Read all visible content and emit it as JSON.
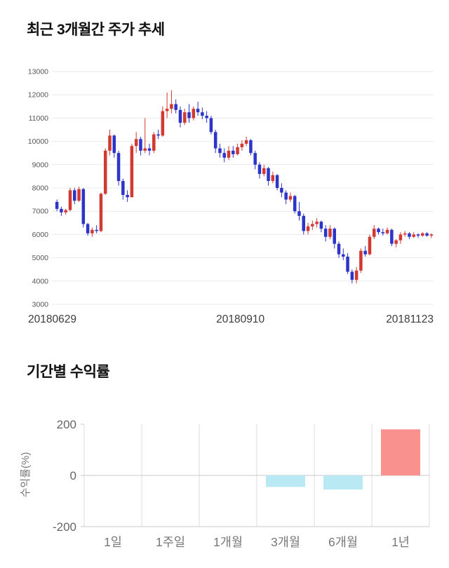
{
  "page": {
    "background": "#ffffff"
  },
  "chart_data": [
    {
      "type": "candlestick",
      "title": "최근 3개월간 주가 추세",
      "x_labels": [
        "20180629",
        "20180910",
        "20181123"
      ],
      "yticks": [
        13000,
        12000,
        11000,
        10000,
        9000,
        8000,
        7000,
        6000,
        5000,
        4000,
        3000
      ],
      "ylim": [
        3000,
        13000
      ],
      "grid": true,
      "up_color": "#d03a32",
      "down_color": "#2d35c8",
      "grid_color": "#e9e9e9",
      "tick_color": "#555555",
      "xlabel_color": "#3c3c3c",
      "ohlc": [
        [
          7400,
          7500,
          7000,
          7100
        ],
        [
          7100,
          7200,
          6800,
          6950
        ],
        [
          6950,
          7100,
          6850,
          7050
        ],
        [
          7050,
          8000,
          7000,
          7900
        ],
        [
          7900,
          8000,
          7300,
          7450
        ],
        [
          7450,
          8050,
          7400,
          7950
        ],
        [
          7950,
          8000,
          6300,
          6450
        ],
        [
          6450,
          6500,
          5950,
          6050
        ],
        [
          6050,
          6300,
          5900,
          6200
        ],
        [
          6200,
          6400,
          6050,
          6150
        ],
        [
          6150,
          7800,
          6100,
          7750
        ],
        [
          7750,
          9700,
          7700,
          9600
        ],
        [
          9600,
          10500,
          9400,
          10250
        ],
        [
          10250,
          10300,
          9300,
          9500
        ],
        [
          9500,
          9600,
          8100,
          8300
        ],
        [
          8300,
          8400,
          7500,
          7700
        ],
        [
          7700,
          7900,
          7400,
          7600
        ],
        [
          7600,
          9900,
          7600,
          9800
        ],
        [
          9800,
          10400,
          9500,
          10100
        ],
        [
          10100,
          10200,
          9400,
          9600
        ],
        [
          9600,
          11000,
          9500,
          9700
        ],
        [
          9700,
          9900,
          9400,
          9600
        ],
        [
          9600,
          10400,
          9500,
          10300
        ],
        [
          10300,
          10500,
          10100,
          10250
        ],
        [
          10250,
          11500,
          10200,
          11300
        ],
        [
          11300,
          12100,
          11000,
          11400
        ],
        [
          11400,
          12200,
          11200,
          11600
        ],
        [
          11600,
          11800,
          11200,
          11350
        ],
        [
          11350,
          11500,
          10600,
          10800
        ],
        [
          10800,
          11400,
          10700,
          11250
        ],
        [
          11250,
          11600,
          10800,
          11000
        ],
        [
          11000,
          11500,
          10900,
          11400
        ],
        [
          11400,
          11700,
          11100,
          11250
        ],
        [
          11250,
          11450,
          10950,
          11100
        ],
        [
          11100,
          11300,
          10800,
          11000
        ],
        [
          11000,
          11100,
          10300,
          10400
        ],
        [
          10400,
          10500,
          9500,
          9700
        ],
        [
          9700,
          9900,
          9300,
          9500
        ],
        [
          9500,
          9700,
          9100,
          9300
        ],
        [
          9300,
          9800,
          9200,
          9600
        ],
        [
          9600,
          9800,
          9300,
          9450
        ],
        [
          9450,
          9900,
          9400,
          9750
        ],
        [
          9750,
          10050,
          9600,
          9900
        ],
        [
          9900,
          10200,
          9800,
          10050
        ],
        [
          10050,
          10100,
          9400,
          9500
        ],
        [
          9500,
          9600,
          8800,
          9000
        ],
        [
          9000,
          9100,
          8400,
          8600
        ],
        [
          8600,
          9000,
          8500,
          8850
        ],
        [
          8850,
          8900,
          8100,
          8300
        ],
        [
          8300,
          8700,
          8200,
          8550
        ],
        [
          8550,
          8600,
          7900,
          8000
        ],
        [
          8000,
          8200,
          7600,
          7800
        ],
        [
          7800,
          7900,
          7300,
          7500
        ],
        [
          7500,
          7800,
          7400,
          7650
        ],
        [
          7650,
          7700,
          6900,
          7000
        ],
        [
          7000,
          7400,
          6600,
          6800
        ],
        [
          6800,
          6900,
          6000,
          6150
        ],
        [
          6150,
          6500,
          6000,
          6350
        ],
        [
          6350,
          6600,
          6200,
          6450
        ],
        [
          6450,
          6700,
          6300,
          6550
        ],
        [
          6550,
          6600,
          6100,
          6250
        ],
        [
          6250,
          6400,
          5700,
          5900
        ],
        [
          5900,
          6400,
          5800,
          6250
        ],
        [
          6250,
          6300,
          5400,
          5600
        ],
        [
          5600,
          5700,
          5000,
          5150
        ],
        [
          5150,
          5400,
          4900,
          5050
        ],
        [
          5050,
          5200,
          4300,
          4400
        ],
        [
          4400,
          4500,
          3900,
          4050
        ],
        [
          4050,
          4600,
          3900,
          4450
        ],
        [
          4450,
          5400,
          4350,
          5300
        ],
        [
          5300,
          5500,
          5050,
          5150
        ],
        [
          5150,
          6000,
          5100,
          5900
        ],
        [
          5900,
          6400,
          5800,
          6250
        ],
        [
          6250,
          6300,
          6000,
          6100
        ],
        [
          6100,
          6250,
          5950,
          6050
        ],
        [
          6050,
          6300,
          6000,
          6200
        ],
        [
          6200,
          6250,
          5500,
          5600
        ],
        [
          5600,
          5800,
          5450,
          5750
        ],
        [
          5750,
          6100,
          5600,
          6000
        ],
        [
          6000,
          6150,
          5900,
          6050
        ],
        [
          6050,
          6100,
          5800,
          5900
        ],
        [
          5900,
          6100,
          5850,
          6000
        ],
        [
          6000,
          6050,
          5850,
          5950
        ],
        [
          5950,
          6100,
          5900,
          6050
        ],
        [
          6050,
          6100,
          5900,
          5950
        ],
        [
          5950,
          6050,
          5850,
          6000
        ]
      ]
    },
    {
      "type": "bar",
      "title": "기간별 수익률",
      "ylabel": "수익률(%)",
      "categories": [
        "1일",
        "1주일",
        "1개월",
        "3개월",
        "6개월",
        "1년"
      ],
      "values": [
        0,
        0,
        0,
        -45,
        -55,
        180
      ],
      "yticks": [
        200,
        0,
        -200
      ],
      "ylim": [
        -200,
        200
      ],
      "grid": true,
      "legend": "none",
      "positive_color": "#f9928f",
      "negative_color": "#b9e9f2",
      "grid_color": "#dddddd",
      "axis_color": "#c8c8c8",
      "tick_color": "#666666",
      "cat_color": "#777777"
    }
  ]
}
